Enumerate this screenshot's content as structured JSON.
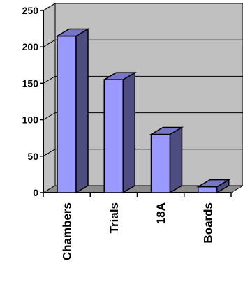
{
  "chart_data": {
    "type": "bar",
    "categories": [
      "Chambers",
      "Trials",
      "18A",
      "Boards"
    ],
    "values": [
      215,
      155,
      80,
      8
    ],
    "title": "",
    "xlabel": "",
    "ylabel": "",
    "ylim": [
      0,
      250
    ],
    "yticks": [
      0,
      50,
      100,
      150,
      200,
      250
    ],
    "grid": true,
    "legend": "none",
    "style": "3d-column",
    "colors": {
      "bar_front": "#9999ff",
      "bar_side": "#4d4d80",
      "bar_top": "#7676c6",
      "wall": "#c0c0c0",
      "floor": "#8c8c8c",
      "gridline": "#000000",
      "outline": "#000000"
    }
  }
}
